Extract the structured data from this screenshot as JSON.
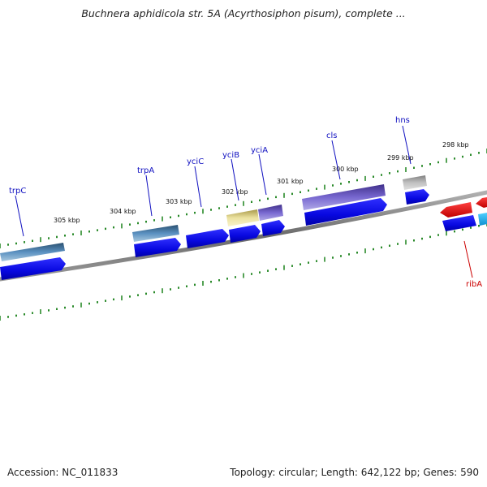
{
  "title": "Buchnera aphidicola str. 5A (Acyrthosiphon pisum), complete ...",
  "footer": {
    "accession": "Accession: NC_011833",
    "summary": "Topology: circular; Length: 642,122 bp; Genes: 590"
  },
  "scale": [
    "305 kbp",
    "304 kbp",
    "303 kbp",
    "302 kbp",
    "301 kbp",
    "300 kbp",
    "299 kbp",
    "298 kbp"
  ],
  "gene_labels": [
    "trpC",
    "trpA",
    "yciC",
    "yciB",
    "yciA",
    "cls",
    "hns",
    "ribA"
  ],
  "colors": {
    "backbone": "#7a7a7a",
    "cds": "#0a0aee",
    "trp": "#4a78a8",
    "yciB": "#e8df98",
    "violet": "#7060c8",
    "hns": "#b0b0b0",
    "ribA": "#e01010",
    "cyan": "#20b0e8",
    "tick": "#2a8a2a",
    "label_forward": "#1010c0",
    "label_reverse": "#cc0000"
  }
}
